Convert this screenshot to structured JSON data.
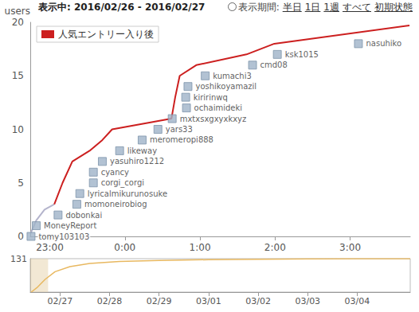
{
  "header": {
    "title": "表示中: 2016/02/26 - 2016/02/27",
    "period_label": "表示期間:",
    "period_options": [
      "半日",
      "1日",
      "1週",
      "すべて",
      "初期状態"
    ]
  },
  "chart_data": [
    {
      "type": "line",
      "y_label": "users",
      "x": [
        22.746,
        22.82,
        22.93,
        23.06,
        23.17,
        23.3,
        23.53,
        23.7,
        23.83,
        24.62,
        24.67,
        24.73,
        24.95,
        25.62,
        25.99,
        27.79
      ],
      "series": [
        {
          "color": "#b4b4cc",
          "values": [
            0.3,
            1.5,
            2.5,
            3,
            null,
            null,
            null,
            null,
            null,
            null,
            null,
            null,
            null,
            null,
            null,
            null
          ]
        },
        {
          "name": "人気エントリー入り後",
          "color": "#cc1f1f",
          "values": [
            null,
            null,
            null,
            3,
            5,
            7,
            8,
            9,
            10,
            11,
            13,
            15,
            16,
            17,
            18,
            19.7
          ]
        }
      ],
      "xlim": [
        22.74,
        27.8
      ],
      "xticks": [
        {
          "value": 23,
          "label": "23:00"
        },
        {
          "value": 24,
          "label": "0:00"
        },
        {
          "value": 25,
          "label": "1:00"
        },
        {
          "value": 26,
          "label": "2:00"
        },
        {
          "value": 27,
          "label": "3:00"
        }
      ],
      "ylim": [
        0,
        20
      ],
      "yticks": [
        0,
        5,
        10,
        15,
        20
      ],
      "grid": false,
      "legend": "top-left",
      "annotations": [
        {
          "text": "tomy103103",
          "x": 22.75,
          "y": 0
        },
        {
          "text": "MoneyReport",
          "x": 22.82,
          "y": 1
        },
        {
          "text": "dobonkai",
          "x": 23.11,
          "y": 2
        },
        {
          "text": "momoneirobiog",
          "x": 23.36,
          "y": 3
        },
        {
          "text": "lyricalmikurunosuke",
          "x": 23.4,
          "y": 4
        },
        {
          "text": "corgi_corgi",
          "x": 23.58,
          "y": 5
        },
        {
          "text": "cyancy",
          "x": 23.58,
          "y": 6
        },
        {
          "text": "yasuhiro1212",
          "x": 23.7,
          "y": 7
        },
        {
          "text": "likeway",
          "x": 23.93,
          "y": 8
        },
        {
          "text": "meromeropi888",
          "x": 24.23,
          "y": 9
        },
        {
          "text": "yars33",
          "x": 24.44,
          "y": 10
        },
        {
          "text": "mxtxsxgxyxkxyz",
          "x": 24.63,
          "y": 11
        },
        {
          "text": "ochaimideki",
          "x": 24.82,
          "y": 12
        },
        {
          "text": "kiririnwq",
          "x": 24.81,
          "y": 13
        },
        {
          "text": "yoshikoyamazil",
          "x": 24.84,
          "y": 14
        },
        {
          "text": "kumachi3",
          "x": 25.07,
          "y": 15
        },
        {
          "text": "cmd08",
          "x": 25.7,
          "y": 16
        },
        {
          "text": "ksk1015",
          "x": 26.03,
          "y": 17
        },
        {
          "text": "nasuhiko",
          "x": 27.11,
          "y": 18
        }
      ]
    },
    {
      "type": "line",
      "x": [
        26.42,
        26.55,
        26.7,
        26.9,
        27.2,
        27.6,
        28.2,
        29,
        30,
        31,
        32,
        33,
        34.07
      ],
      "values": [
        0,
        20,
        50,
        80,
        100,
        112,
        120,
        124,
        127,
        129,
        130,
        131,
        131
      ],
      "color": "#e8b860",
      "xlim": [
        26.4,
        34.07
      ],
      "xticks": [
        {
          "value": 27,
          "label": "02/27"
        },
        {
          "value": 28,
          "label": "02/28"
        },
        {
          "value": 29,
          "label": "02/29"
        },
        {
          "value": 30,
          "label": "03/01"
        },
        {
          "value": 31,
          "label": "03/02"
        },
        {
          "value": 32,
          "label": "03/03"
        },
        {
          "value": 33,
          "label": "03/04"
        }
      ],
      "ylim": [
        0,
        131
      ],
      "yticks": [
        131
      ],
      "grid": false,
      "highlight": [
        26.4,
        26.76
      ]
    }
  ]
}
